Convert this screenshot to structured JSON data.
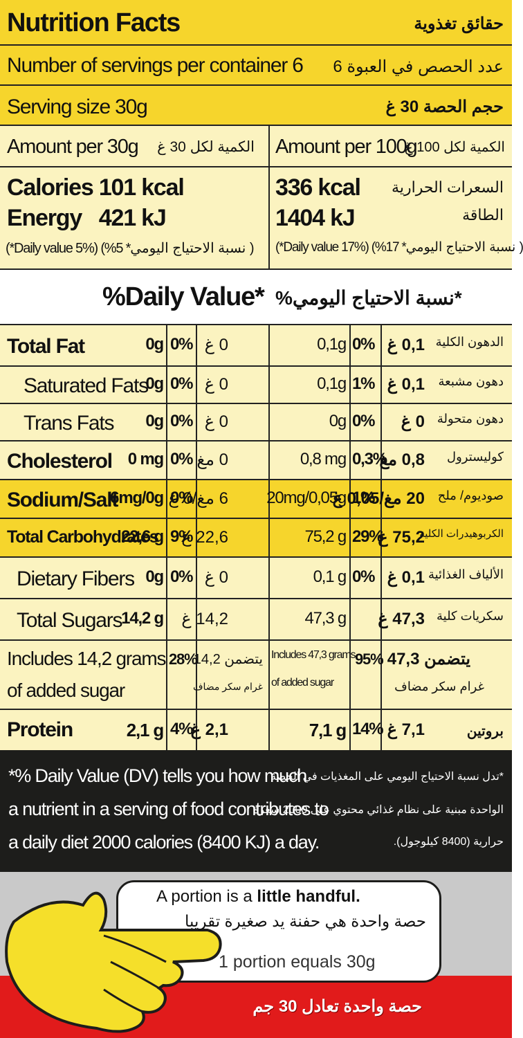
{
  "header": {
    "title_en": "Nutrition Facts",
    "title_ar": "حقائق تغذوية",
    "servings_en": "Number of servings per container 6",
    "servings_ar": "عدد الحصص في العبوة 6",
    "serving_size_en": "Serving size 30g",
    "serving_size_ar": "حجم الحصة 30 غ"
  },
  "amounts": {
    "per30_en": "Amount per 30g",
    "per30_ar": "الكمية لكل 30 غ",
    "per100_en": "Amount per 100g",
    "per100_ar": "الكمية لكل 100 غ"
  },
  "energy": {
    "cal_30": "Calories 101 kcal",
    "energy_30": "Energy   421 kJ",
    "dv_30": "(*Daily value 5%) (%5 *نسبة الاحتياج اليومي )",
    "cal_100": "336 kcal",
    "energy_100": "1404 kJ",
    "cal_ar": "السعرات الحرارية",
    "energy_ar": "الطاقة",
    "dv_100": "(*Daily value 17%) (%17 *نسبة الاحتياج اليومي )"
  },
  "dv_heading": {
    "en": "%Daily Value*",
    "ar": "*نسبة الاحتياج اليومي%"
  },
  "nutrients": [
    {
      "name_en": "Total Fat",
      "v30": "0g",
      "p30": "0%",
      "ar30": "0 غ",
      "v100": "0,1g",
      "p100": "0%",
      "ar100": "0,1 غ",
      "name_ar": "الدهون الكلية"
    },
    {
      "name_en": "Saturated Fats",
      "v30": "0g",
      "p30": "0%",
      "ar30": "0 غ",
      "v100": "0,1g",
      "p100": "1%",
      "ar100": "0,1 غ",
      "name_ar": "دهون مشبعة"
    },
    {
      "name_en": "Trans Fats",
      "v30": "0g",
      "p30": "0%",
      "ar30": "0 غ",
      "v100": "0g",
      "p100": "0%",
      "ar100": "0 غ",
      "name_ar": "دهون متحولة"
    },
    {
      "name_en": "Cholesterol",
      "v30": "0 mg",
      "p30": "0%",
      "ar30": "0 مغ",
      "v100": "0,8 mg",
      "p100": "0,3%",
      "ar100": "0,8 مغ",
      "name_ar": "كوليسترول"
    },
    {
      "name_en": "Sodium/Salt",
      "v30": "6mg/0g",
      "p30": "0%",
      "ar30": "6 مغ/0 غ",
      "v100": "20mg/0,05g",
      "p100": "1%",
      "ar100": "20 مغ/0,05 غ",
      "name_ar": "صوديوم/ ملح"
    },
    {
      "name_en": "Total Carbohydrates",
      "v30": "22,6 g",
      "p30": "9%",
      "ar30": "22,6 غ",
      "v100": "75,2 g",
      "p100": "29%",
      "ar100": "75,2 غ",
      "name_ar": "الكربوهيدرات الكلية"
    },
    {
      "name_en": "Dietary Fibers",
      "v30": "0g",
      "p30": "0%",
      "ar30": "0 غ",
      "v100": "0,1 g",
      "p100": "0%",
      "ar100": "0,1 غ",
      "name_ar": "الألياف الغذائية"
    },
    {
      "name_en": "Total Sugars",
      "v30": "14,2 g",
      "p30": "",
      "ar30": "14,2 غ",
      "v100": "47,3 g",
      "p100": "",
      "ar100": "47,3 غ",
      "name_ar": "سكريات كلية"
    }
  ],
  "added_sugar": {
    "en_30_a": "Includes 14,2 grams",
    "en_30_b": "of added sugar",
    "p30": "28%",
    "ar_30_a": "يتضمن 14,2",
    "ar_30_b": "غرام سكر مضاف",
    "en_100_a": "Includes 47,3 grams",
    "en_100_b": "of added sugar",
    "p100": "95%",
    "ar_100_a": "يتضمن 47,3",
    "ar_100_b": "غرام سكر مضاف"
  },
  "protein": {
    "name_en": "Protein",
    "v30": "2,1 g",
    "p30": "4%",
    "ar30": "2,1 غ",
    "v100": "7,1 g",
    "p100": "14%",
    "ar100": "7,1 غ",
    "name_ar": "بروتين"
  },
  "footnote": {
    "en_1": "*% Daily Value (DV) tells you how much",
    "en_2": "a nutrient in a serving of  food contributes to",
    "en_3": "a daily diet 2000 calories (8400 KJ) a day.",
    "ar_1": "*تدل نسبة الاحتياج اليومي على المغذيات في الحصة",
    "ar_2": "الواحدة مبنية على نظام غذائي محتوي على 2000 سعرة",
    "ar_3": "حرارية (8400 كيلوجول)."
  },
  "portion": {
    "line1_a": "A portion is a ",
    "line1_b": "little handful.",
    "line2": "حصة واحدة هي حفنة يد صغيرة تقريبا",
    "line3": "1 portion equals 30g",
    "line4": "حصة واحدة تعادل 30 جم"
  },
  "colors": {
    "yellow": "#f6d52c",
    "cream": "#fbf3c0",
    "dark": "#1d1d1b",
    "grey": "#c9c9c9",
    "red": "#e11b1b",
    "hand_yellow": "#f5df2a"
  }
}
